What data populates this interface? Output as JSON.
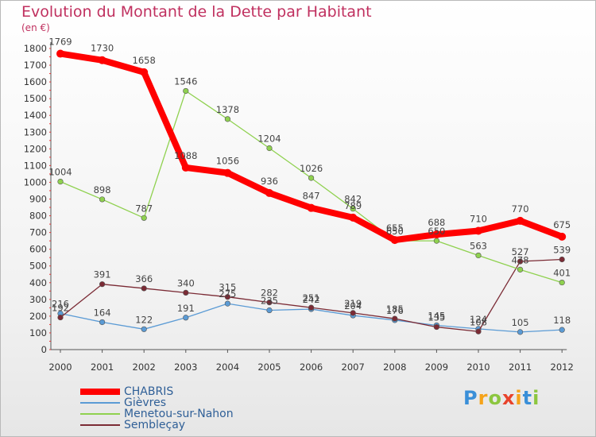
{
  "chart_data": {
    "type": "line",
    "title": "Evolution du Montant de la Dette par Habitant",
    "unit_label": "(en €)",
    "categories": [
      "2000",
      "2001",
      "2002",
      "2003",
      "2004",
      "2005",
      "2006",
      "2007",
      "2008",
      "2009",
      "2010",
      "2011",
      "2012"
    ],
    "ylim": [
      0,
      1800
    ],
    "yticks": [
      0,
      100,
      200,
      300,
      400,
      500,
      600,
      700,
      800,
      900,
      1000,
      1100,
      1200,
      1300,
      1400,
      1500,
      1600,
      1700,
      1800
    ],
    "grid": false,
    "legend_position": "bottom-left",
    "series": [
      {
        "name": "CHABRIS",
        "color": "#ff0000",
        "values": [
          1769,
          1730,
          1658,
          1088,
          1056,
          936,
          847,
          789,
          655,
          688,
          710,
          770,
          675
        ]
      },
      {
        "name": "Gièvres",
        "color": "#5b9bd5",
        "values": [
          216,
          164,
          122,
          191,
          275,
          235,
          242,
          204,
          176,
          145,
          124,
          105,
          118
        ]
      },
      {
        "name": "Menetou-sur-Nahon",
        "color": "#8fd14f",
        "values": [
          1004,
          898,
          787,
          1546,
          1378,
          1204,
          1026,
          842,
          650,
          650,
          563,
          478,
          401
        ]
      },
      {
        "name": "Sembleçay",
        "color": "#7b2b35",
        "values": [
          192,
          391,
          366,
          340,
          315,
          282,
          251,
          219,
          185,
          135,
          108,
          527,
          539
        ]
      }
    ]
  },
  "logo": {
    "letters": [
      {
        "ch": "P",
        "color": "#3a8fd8"
      },
      {
        "ch": "r",
        "color": "#f5a31a"
      },
      {
        "ch": "o",
        "color": "#8cc63f"
      },
      {
        "ch": "x",
        "color": "#e8432b"
      },
      {
        "ch": "i",
        "color": "#f5a31a"
      },
      {
        "ch": "t",
        "color": "#3a8fd8"
      },
      {
        "ch": "i",
        "color": "#8cc63f"
      }
    ]
  }
}
